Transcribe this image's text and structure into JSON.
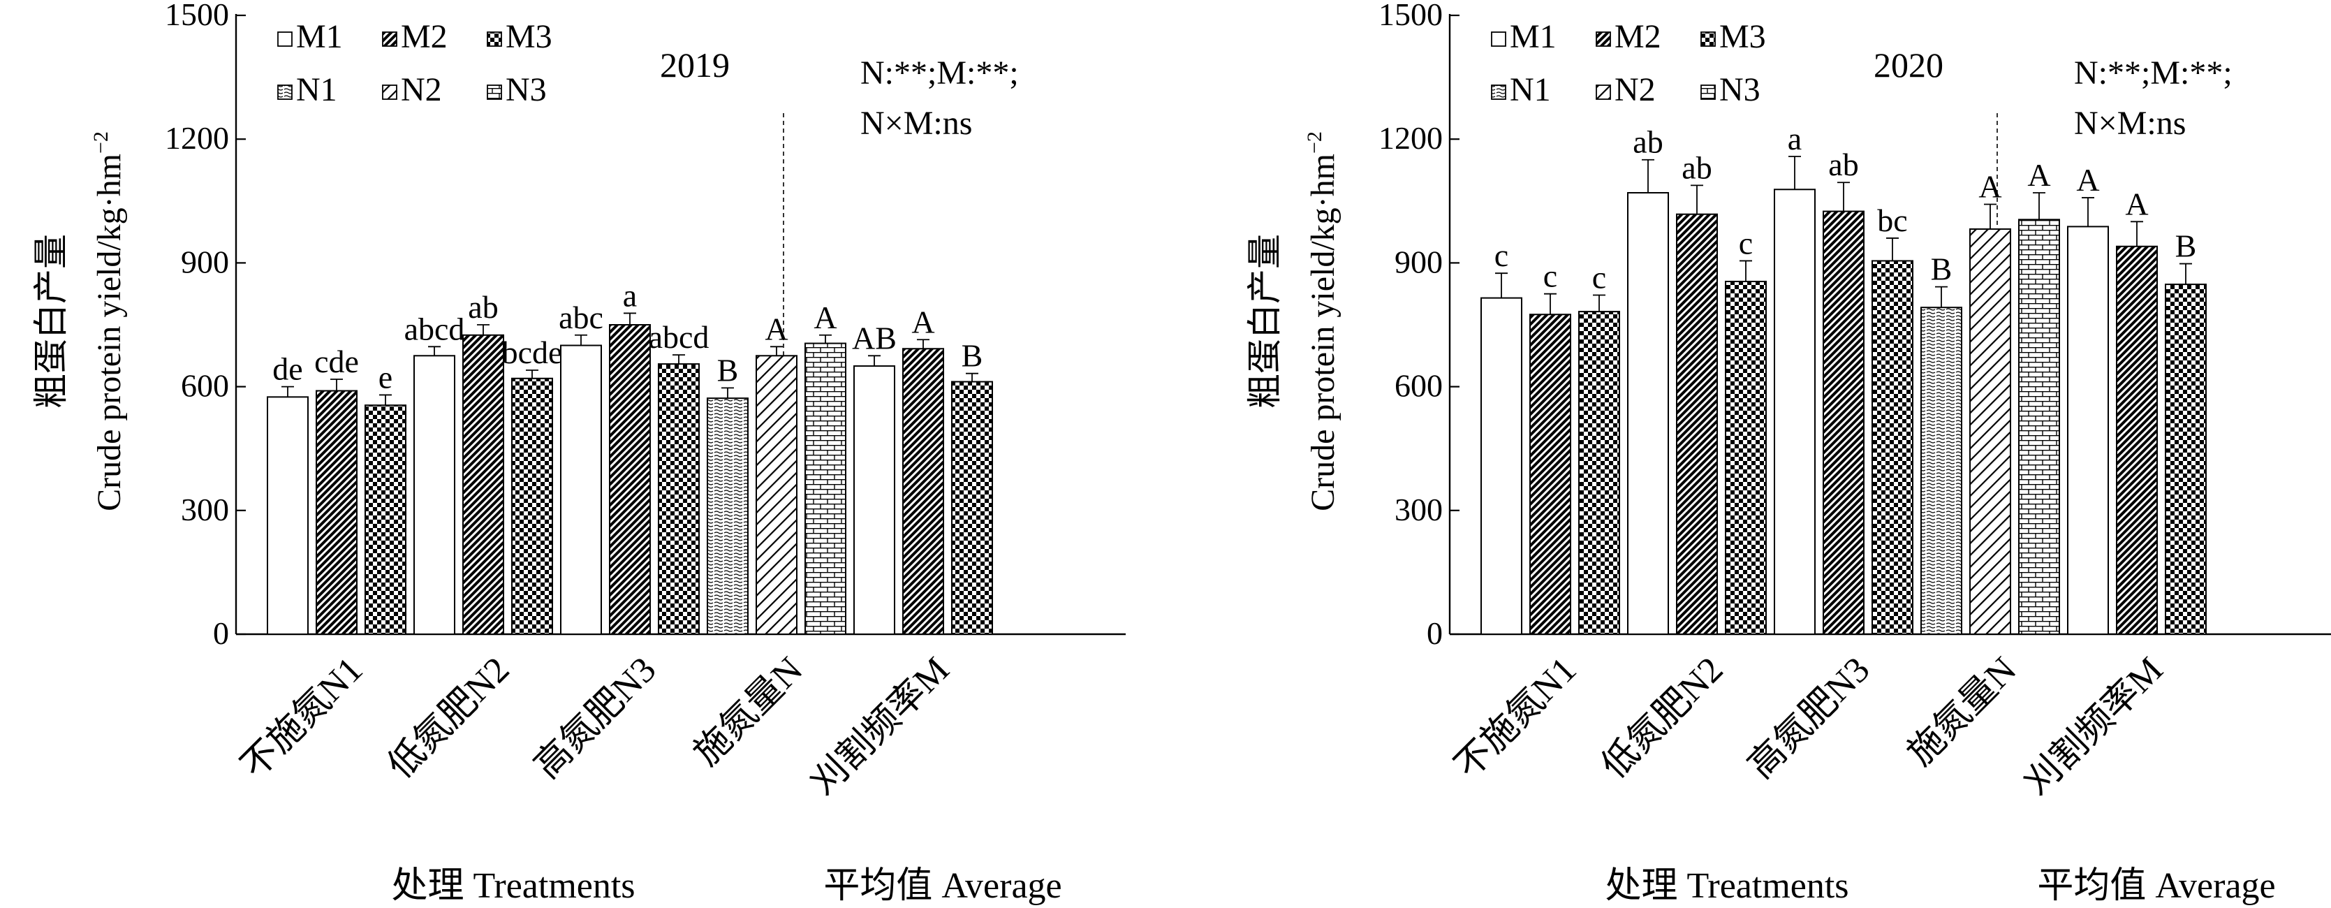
{
  "chart_data": [
    {
      "type": "bar",
      "year_label": "2019",
      "ylabel_cn": "粗蛋白产量",
      "ylabel_en": "Crude protein yield/kg·hm",
      "ylabel_sup": "−2",
      "ylim": [
        0,
        1500
      ],
      "yticks": [
        "0",
        "300",
        "600",
        "900",
        "1200",
        "1500"
      ],
      "ytick_values": [
        0,
        300,
        600,
        900,
        1200,
        1500
      ],
      "xlabel_left": "处理 Treatments",
      "xlabel_right": "平均值 Average",
      "significance": [
        "N:**;M:**;",
        "N×M:ns"
      ],
      "legend": {
        "rows": [
          [
            {
              "name": "M1",
              "pattern": "blank"
            },
            {
              "name": "M2",
              "pattern": "diagDense"
            },
            {
              "name": "M3",
              "pattern": "checker"
            }
          ],
          [
            {
              "name": "N1",
              "pattern": "dots"
            },
            {
              "name": "N2",
              "pattern": "hatchR"
            },
            {
              "name": "N3",
              "pattern": "brick"
            }
          ]
        ]
      },
      "groups": [
        {
          "label": "不施氮N1",
          "bars": [
            {
              "series": "M1",
              "pattern": "blank",
              "value": 575,
              "error": 25,
              "letter": "de"
            },
            {
              "series": "M2",
              "pattern": "diagDense",
              "value": 590,
              "error": 28,
              "letter": "cde"
            },
            {
              "series": "M3",
              "pattern": "checker",
              "value": 555,
              "error": 25,
              "letter": "e"
            }
          ]
        },
        {
          "label": "低氮肥N2",
          "bars": [
            {
              "series": "M1",
              "pattern": "blank",
              "value": 675,
              "error": 22,
              "letter": "abcd"
            },
            {
              "series": "M2",
              "pattern": "diagDense",
              "value": 725,
              "error": 25,
              "letter": "ab"
            },
            {
              "series": "M3",
              "pattern": "checker",
              "value": 620,
              "error": 20,
              "letter": "bcde"
            }
          ]
        },
        {
          "label": "高氮肥N3",
          "bars": [
            {
              "series": "M1",
              "pattern": "blank",
              "value": 700,
              "error": 25,
              "letter": "abc"
            },
            {
              "series": "M2",
              "pattern": "diagDense",
              "value": 750,
              "error": 28,
              "letter": "a"
            },
            {
              "series": "M3",
              "pattern": "checker",
              "value": 655,
              "error": 22,
              "letter": "abcd"
            }
          ]
        },
        {
          "label": "施氮量N",
          "bars": [
            {
              "series": "N1",
              "pattern": "dots",
              "value": 572,
              "error": 25,
              "letter": "B"
            },
            {
              "series": "N2",
              "pattern": "hatchR",
              "value": 675,
              "error": 22,
              "letter": "A"
            },
            {
              "series": "N3",
              "pattern": "brick",
              "value": 705,
              "error": 20,
              "letter": "A"
            }
          ]
        },
        {
          "label": "刈割频率M",
          "bars": [
            {
              "series": "M1",
              "pattern": "blank",
              "value": 650,
              "error": 25,
              "letter": "AB"
            },
            {
              "series": "M2",
              "pattern": "diagDense",
              "value": 692,
              "error": 22,
              "letter": "A"
            },
            {
              "series": "M3",
              "pattern": "checker",
              "value": 612,
              "error": 20,
              "letter": "B"
            }
          ]
        }
      ]
    },
    {
      "type": "bar",
      "year_label": "2020",
      "ylabel_cn": "粗蛋白产量",
      "ylabel_en": "Crude protein yield/kg·hm",
      "ylabel_sup": "−2",
      "ylim": [
        0,
        1500
      ],
      "yticks": [
        "0",
        "300",
        "600",
        "900",
        "1200",
        "1500"
      ],
      "ytick_values": [
        0,
        300,
        600,
        900,
        1200,
        1500
      ],
      "xlabel_left": "处理 Treatments",
      "xlabel_right": "平均值 Average",
      "significance": [
        "N:**;M:**;",
        "N×M:ns"
      ],
      "legend": {
        "rows": [
          [
            {
              "name": "M1",
              "pattern": "blank"
            },
            {
              "name": "M2",
              "pattern": "diagDense"
            },
            {
              "name": "M3",
              "pattern": "checker"
            }
          ],
          [
            {
              "name": "N1",
              "pattern": "dots"
            },
            {
              "name": "N2",
              "pattern": "hatchR"
            },
            {
              "name": "N3",
              "pattern": "brick"
            }
          ]
        ]
      },
      "groups": [
        {
          "label": "不施氮N1",
          "bars": [
            {
              "series": "M1",
              "pattern": "blank",
              "value": 815,
              "error": 60,
              "letter": "c"
            },
            {
              "series": "M2",
              "pattern": "diagDense",
              "value": 775,
              "error": 50,
              "letter": "c"
            },
            {
              "series": "M3",
              "pattern": "checker",
              "value": 782,
              "error": 40,
              "letter": "c"
            }
          ]
        },
        {
          "label": "低氮肥N2",
          "bars": [
            {
              "series": "M1",
              "pattern": "blank",
              "value": 1070,
              "error": 80,
              "letter": "ab"
            },
            {
              "series": "M2",
              "pattern": "diagDense",
              "value": 1018,
              "error": 70,
              "letter": "ab"
            },
            {
              "series": "M3",
              "pattern": "checker",
              "value": 855,
              "error": 50,
              "letter": "c"
            }
          ]
        },
        {
          "label": "高氮肥N3",
          "bars": [
            {
              "series": "M1",
              "pattern": "blank",
              "value": 1078,
              "error": 80,
              "letter": "a"
            },
            {
              "series": "M2",
              "pattern": "diagDense",
              "value": 1025,
              "error": 70,
              "letter": "ab"
            },
            {
              "series": "M3",
              "pattern": "checker",
              "value": 905,
              "error": 55,
              "letter": "bc"
            }
          ]
        },
        {
          "label": "施氮量N",
          "bars": [
            {
              "series": "N1",
              "pattern": "dots",
              "value": 792,
              "error": 50,
              "letter": "B"
            },
            {
              "series": "N2",
              "pattern": "hatchR",
              "value": 982,
              "error": 60,
              "letter": "A"
            },
            {
              "series": "N3",
              "pattern": "brick",
              "value": 1005,
              "error": 65,
              "letter": "A"
            }
          ]
        },
        {
          "label": "刈割频率M",
          "bars": [
            {
              "series": "M1",
              "pattern": "blank",
              "value": 988,
              "error": 70,
              "letter": "A"
            },
            {
              "series": "M2",
              "pattern": "diagDense",
              "value": 940,
              "error": 60,
              "letter": "A"
            },
            {
              "series": "M3",
              "pattern": "checker",
              "value": 848,
              "error": 50,
              "letter": "B"
            }
          ]
        }
      ]
    }
  ]
}
